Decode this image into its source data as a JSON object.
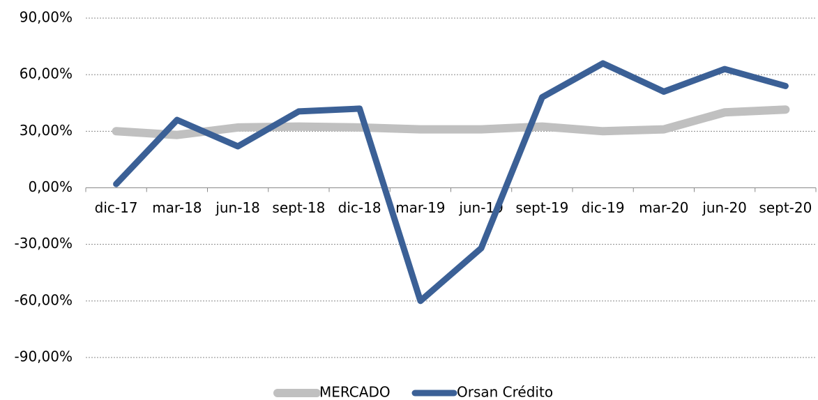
{
  "chart_data": {
    "type": "line",
    "categories": [
      "dic-17",
      "mar-18",
      "jun-18",
      "sept-18",
      "dic-18",
      "mar-19",
      "jun-19",
      "sept-19",
      "dic-19",
      "mar-20",
      "jun-20",
      "sept-20"
    ],
    "series": [
      {
        "name": "MERCADO",
        "color": "#c0c0c0",
        "values": [
          30,
          28,
          32,
          32.5,
          32,
          31,
          31,
          32.5,
          30,
          31,
          40,
          41.5
        ]
      },
      {
        "name": "Orsan Crédito",
        "color": "#3b6096",
        "values": [
          2,
          36,
          22,
          40.5,
          42,
          -60,
          -32,
          48,
          66,
          51,
          63,
          54
        ]
      }
    ],
    "ylim": [
      -90,
      90
    ],
    "yticks": [
      {
        "value": -90,
        "label": "-90,00%"
      },
      {
        "value": -60,
        "label": "-60,00%"
      },
      {
        "value": -30,
        "label": "-30,00%"
      },
      {
        "value": 0,
        "label": "0,00%"
      },
      {
        "value": 30,
        "label": "30,00%"
      },
      {
        "value": 60,
        "label": "60,00%"
      },
      {
        "value": 90,
        "label": "90,00%"
      }
    ],
    "grid": true,
    "legend": "bottom"
  }
}
